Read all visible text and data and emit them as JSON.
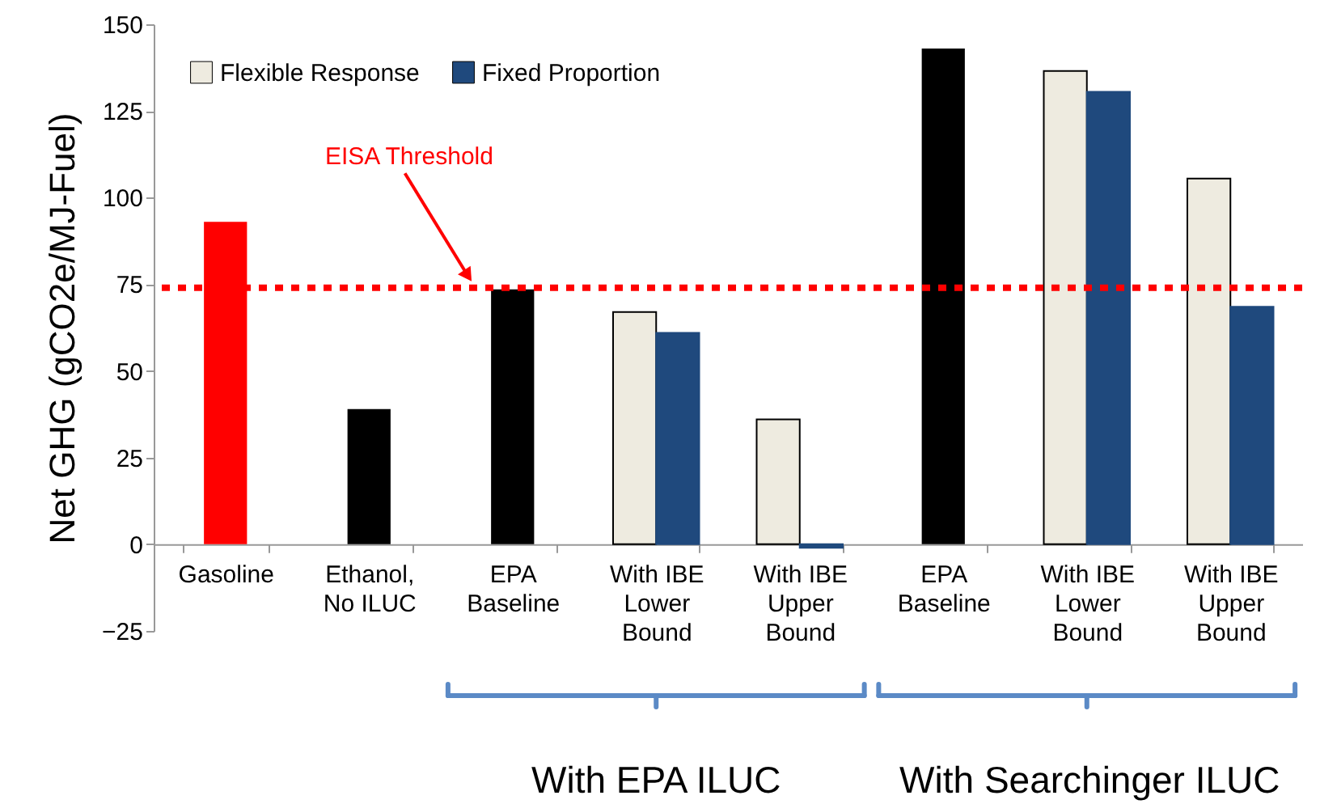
{
  "chart_data": {
    "type": "bar",
    "ylabel": "Net GHG (gCO2e/MJ-Fuel)",
    "categories": [
      "Gasoline",
      "Ethanol, No ILUC",
      "EPA Baseline",
      "With IBE Lower Bound",
      "With IBE Upper Bound",
      "EPA Baseline",
      "With IBE Lower Bound",
      "With IBE Upper Bound"
    ],
    "series": [
      {
        "colors": [
          "#ff0000",
          "#000000",
          "#000000",
          null,
          null,
          "#000000",
          null,
          null
        ],
        "values": [
          93,
          39,
          73.5,
          null,
          null,
          143,
          null,
          null
        ]
      },
      {
        "name": "Flexible Response",
        "color": "#eeebe0",
        "values": [
          null,
          null,
          null,
          67,
          36,
          null,
          136.5,
          105.5
        ]
      },
      {
        "name": "Fixed Proportion",
        "color": "#1f497d",
        "values": [
          null,
          null,
          null,
          61,
          -1,
          null,
          130.5,
          68.5
        ]
      }
    ],
    "ylim": [
      -25,
      150
    ],
    "yticks": [
      -25,
      0,
      25,
      50,
      75,
      100,
      125,
      150
    ],
    "grid": false,
    "legend": "top left",
    "ref_lines": [
      {
        "axis": "y",
        "value": 74,
        "label": "EISA Threshold",
        "color": "#ff0000",
        "line_style": "dotted"
      }
    ],
    "annotations": [
      "With EPA ILUC",
      "With Searchinger ILUC"
    ]
  }
}
